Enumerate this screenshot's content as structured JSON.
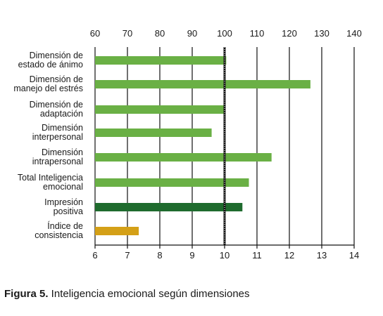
{
  "chart_data": {
    "type": "bar",
    "orientation": "horizontal",
    "top_axis": {
      "ticks": [
        "60",
        "70",
        "80",
        "90",
        "100",
        "110",
        "120",
        "130",
        "140"
      ]
    },
    "bottom_axis": {
      "ticks": [
        "6",
        "7",
        "8",
        "9",
        "10",
        "11",
        "12",
        "13",
        "14"
      ]
    },
    "xlim": [
      6,
      14
    ],
    "reference_value": 10,
    "grid": "vertical",
    "categories": [
      "Dimensión de estado de ánimo",
      "Dimensión de manejo del estrés",
      "Dimensión de adaptación",
      "Dimensión interpersonal",
      "Dimensión intrapersonal",
      "Total Inteligencia emocional",
      "Impresión positiva",
      "Índice de consistencia"
    ],
    "category_lines": [
      [
        "Dimensión de",
        "estado de ánimo"
      ],
      [
        "Dimensión de",
        "manejo del estrés"
      ],
      [
        "Dimensión de",
        "adaptación"
      ],
      [
        "Dimensión",
        "interpersonal"
      ],
      [
        "Dimensión",
        "intrapersonal"
      ],
      [
        "Total Inteligencia",
        "emocional"
      ],
      [
        "Impresión",
        "positiva"
      ],
      [
        "Índice de",
        "consistencia"
      ]
    ],
    "values": [
      10.05,
      12.65,
      10.0,
      9.6,
      11.45,
      10.75,
      10.55,
      7.35
    ],
    "colors": [
      "#6ab045",
      "#6ab045",
      "#6ab045",
      "#6ab045",
      "#6ab045",
      "#6ab045",
      "#1f6b2e",
      "#d4a017"
    ]
  },
  "caption": {
    "label": "Figura 5.",
    "text": " Inteligencia emocional según dimensiones"
  }
}
